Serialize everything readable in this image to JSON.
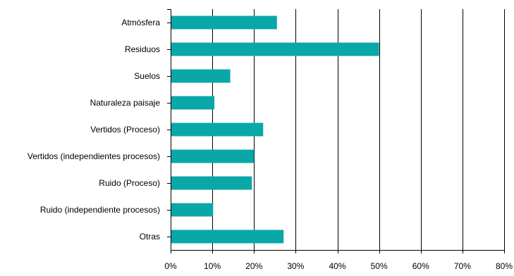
{
  "chart_data": {
    "type": "bar",
    "orientation": "horizontal",
    "categories": [
      "Atmósfera",
      "Residuos",
      "Suelos",
      "Naturaleza paisaje",
      "Vertidos (Proceso)",
      "Vertidos (independientes procesos)",
      "Ruido (Proceso)",
      "Ruido (independiente procesos)",
      "Otras"
    ],
    "values": [
      25.5,
      50.0,
      14.3,
      10.5,
      22.2,
      20.0,
      19.5,
      10.2,
      27.1
    ],
    "xlim": [
      0,
      80
    ],
    "xticks": [
      0,
      10,
      20,
      30,
      40,
      50,
      60,
      70,
      80
    ],
    "xtick_labels": [
      "0%",
      "10%",
      "20%",
      "30%",
      "40%",
      "50%",
      "60%",
      "70%",
      "80%"
    ],
    "grid": "vertical",
    "bar_color": "#0aa7a7",
    "title": "",
    "xlabel": "",
    "ylabel": ""
  }
}
